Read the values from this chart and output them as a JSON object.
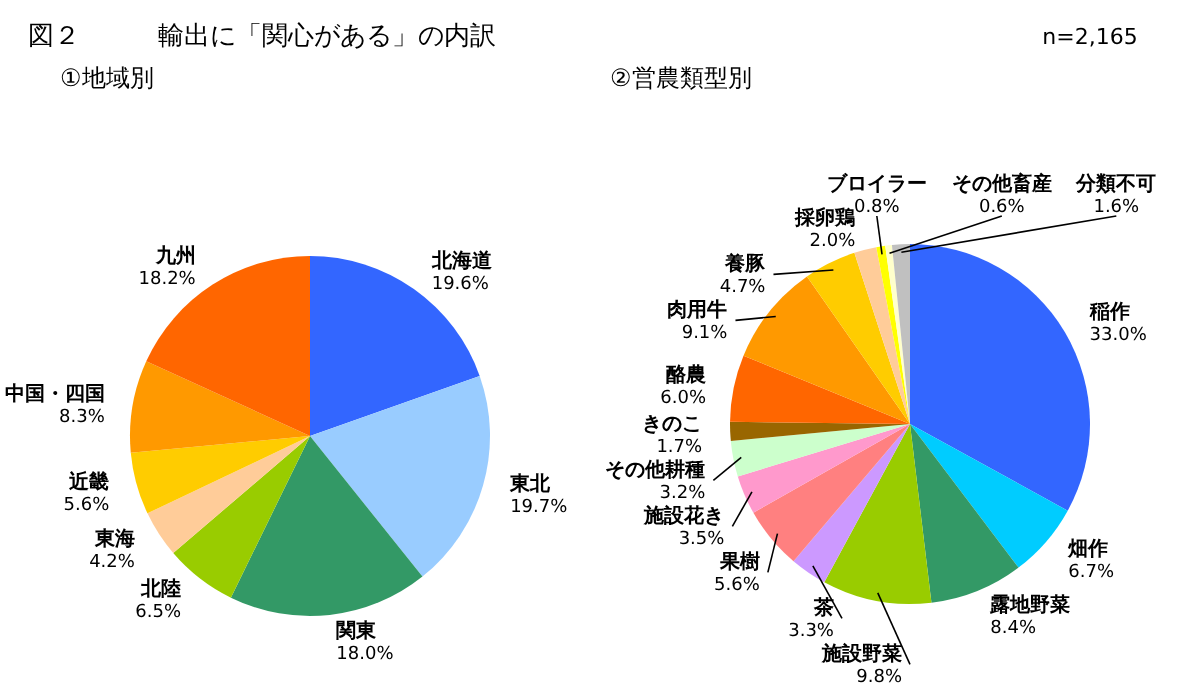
{
  "chart_data": [
    {
      "type": "pie",
      "title": "図２　　　輸出に「関心がある」の内訳",
      "subtitle": "①地域別",
      "categories": [
        "北海道",
        "東北",
        "関東",
        "北陸",
        "東海",
        "近畿",
        "中国・四国",
        "九州"
      ],
      "values": [
        19.6,
        19.7,
        18.0,
        6.5,
        4.2,
        5.6,
        8.3,
        18.2
      ],
      "value_labels": [
        "19.6%",
        "19.7%",
        "18.0%",
        "6.5%",
        "4.2%",
        "5.6%",
        "8.3%",
        "18.2%"
      ],
      "colors": [
        "#3366ff",
        "#99ccff",
        "#339966",
        "#99cc00",
        "#ffcc99",
        "#ffcc00",
        "#ff9900",
        "#ff6600"
      ]
    },
    {
      "type": "pie",
      "title": "②営農類型別",
      "annotations": [
        "n=2,165"
      ],
      "categories": [
        "稲作",
        "畑作",
        "露地野菜",
        "施設野菜",
        "茶",
        "果樹",
        "施設花き",
        "その他耕種",
        "きのこ",
        "酪農",
        "肉用牛",
        "養豚",
        "採卵鶏",
        "ブロイラー",
        "その他畜産",
        "分類不可"
      ],
      "values": [
        33.0,
        6.7,
        8.4,
        9.8,
        3.3,
        5.6,
        3.5,
        3.2,
        1.7,
        6.0,
        9.1,
        4.7,
        2.0,
        0.8,
        0.6,
        1.6
      ],
      "value_labels": [
        "33.0%",
        "6.7%",
        "8.4%",
        "9.8%",
        "3.3%",
        "5.6%",
        "3.5%",
        "3.2%",
        "1.7%",
        "6.0%",
        "9.1%",
        "4.7%",
        "2.0%",
        "0.8%",
        "0.6%",
        "1.6%"
      ],
      "colors": [
        "#3366ff",
        "#00ccff",
        "#339966",
        "#99cc00",
        "#cc99ff",
        "#ff8080",
        "#ff99cc",
        "#ccffcc",
        "#996600",
        "#ff6600",
        "#ff9900",
        "#ffcc00",
        "#ffcc99",
        "#ffff00",
        "#ffffcc",
        "#c0c0c0"
      ]
    }
  ]
}
